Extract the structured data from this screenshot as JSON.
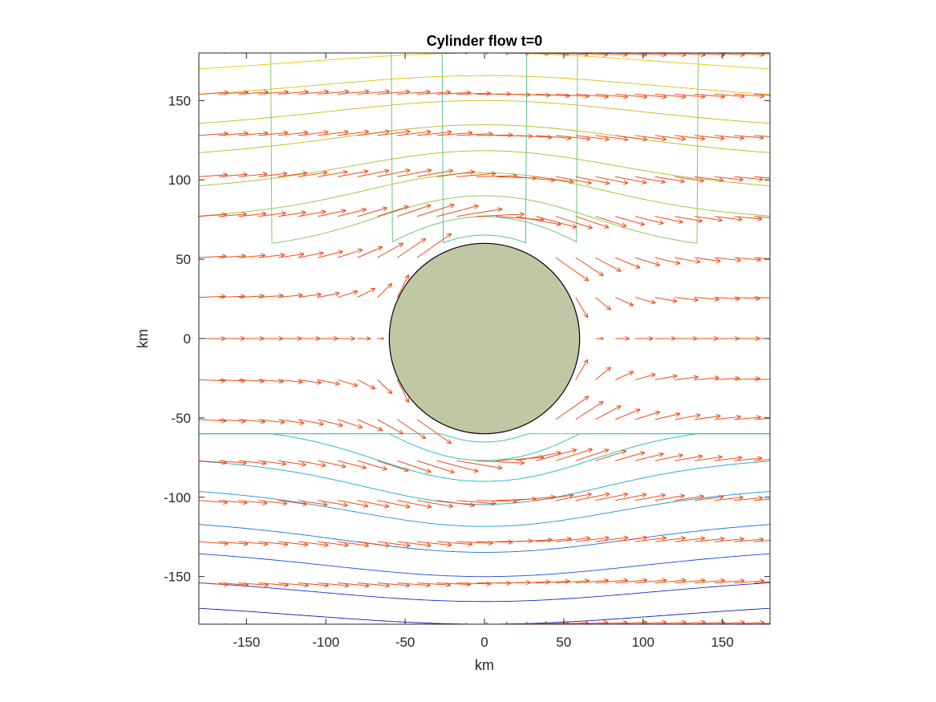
{
  "chart_data": {
    "type": "quiver-streamline",
    "title": "Cylinder flow t=0",
    "xlabel": "km",
    "ylabel": "km",
    "xlim": [
      -180,
      180
    ],
    "ylim": [
      -180,
      180
    ],
    "xticks": [
      -150,
      -100,
      -50,
      0,
      50,
      100,
      150
    ],
    "yticks": [
      -150,
      -100,
      -50,
      0,
      50,
      100,
      150
    ],
    "xtick_labels": [
      "-150",
      "-100",
      "-50",
      "0",
      "50",
      "100",
      "150"
    ],
    "ytick_labels": [
      "-150",
      "-100",
      "-50",
      "0",
      "50",
      "100",
      "150"
    ],
    "cylinder": {
      "center": [
        0,
        0
      ],
      "radius": 60,
      "fill_color": "#bfc7a5",
      "edge_color": "#000000"
    },
    "free_stream_velocity": 1,
    "streamline_offsets_km": [
      -180,
      -160,
      -144,
      -126,
      -108,
      -88,
      -70,
      -50,
      -30,
      -10,
      10,
      30,
      50,
      70,
      88,
      108,
      126,
      144,
      160
    ],
    "streamline_colormap": [
      "#0000b0",
      "#2040e0",
      "#1aa0d0",
      "#12c0b8",
      "#40c080",
      "#98c040",
      "#c8b020",
      "#e8c800"
    ],
    "arrow_rows_y_km": [
      -180,
      -154,
      -128,
      -102,
      -77,
      -51,
      -26,
      0,
      26,
      51,
      77,
      102,
      128,
      154,
      180
    ],
    "arrow_spacing_x_km": 12.5,
    "arrow_color": "#e8501a",
    "grid": false,
    "legend": "none"
  }
}
